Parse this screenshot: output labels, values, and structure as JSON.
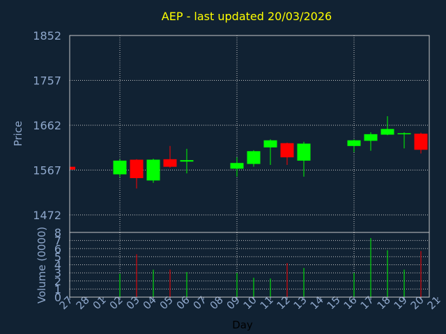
{
  "chart_data": {
    "type": "candlestick",
    "title": "AEP - last updated 20/03/2026",
    "xlabel": "Day",
    "price_panel": {
      "ylabel": "Price",
      "ylim": [
        1435,
        1852
      ],
      "yticks": [
        1472,
        1567,
        1662,
        1757,
        1852
      ],
      "grid": true
    },
    "volume_panel": {
      "ylabel": "Volume (0000)",
      "ylim": [
        0,
        8
      ],
      "yticks": [
        0,
        1,
        2,
        3,
        4,
        5,
        6,
        7,
        8
      ],
      "grid": true
    },
    "x_tick_labels": [
      "27",
      "28",
      "01",
      "02",
      "03",
      "04",
      "05",
      "06",
      "07",
      "08",
      "09",
      "10",
      "11",
      "12",
      "13",
      "14",
      "15",
      "16",
      "17",
      "18",
      "19",
      "20",
      "21"
    ],
    "candles": [
      {
        "x": "27",
        "open": 1574,
        "close": 1568,
        "high": 1575,
        "low": 1567,
        "volume": 0
      },
      {
        "x": "02",
        "open": 1558,
        "close": 1587,
        "high": 1590,
        "low": 1552,
        "volume": 2.9
      },
      {
        "x": "03",
        "open": 1589,
        "close": 1550,
        "high": 1590,
        "low": 1528,
        "volume": 5.3
      },
      {
        "x": "04",
        "open": 1545,
        "close": 1589,
        "high": 1591,
        "low": 1540,
        "volume": 3.4
      },
      {
        "x": "05",
        "open": 1590,
        "close": 1574,
        "high": 1618,
        "low": 1572,
        "volume": 3.4
      },
      {
        "x": "06",
        "open": 1585,
        "close": 1588,
        "high": 1612,
        "low": 1560,
        "volume": 3.1
      },
      {
        "x": "09",
        "open": 1570,
        "close": 1582,
        "high": 1594,
        "low": 1553,
        "volume": 3.0
      },
      {
        "x": "10",
        "open": 1580,
        "close": 1607,
        "high": 1609,
        "low": 1574,
        "volume": 2.4
      },
      {
        "x": "11",
        "open": 1615,
        "close": 1630,
        "high": 1632,
        "low": 1578,
        "volume": 2.3
      },
      {
        "x": "12",
        "open": 1624,
        "close": 1594,
        "high": 1625,
        "low": 1578,
        "volume": 4.2
      },
      {
        "x": "13",
        "open": 1587,
        "close": 1623,
        "high": 1627,
        "low": 1553,
        "volume": 3.6
      },
      {
        "x": "16",
        "open": 1618,
        "close": 1630,
        "high": 1632,
        "low": 1605,
        "volume": 3.0
      },
      {
        "x": "17",
        "open": 1629,
        "close": 1643,
        "high": 1647,
        "low": 1608,
        "volume": 7.3
      },
      {
        "x": "18",
        "open": 1642,
        "close": 1654,
        "high": 1681,
        "low": 1641,
        "volume": 5.8
      },
      {
        "x": "19",
        "open": 1643,
        "close": 1645,
        "high": 1647,
        "low": 1613,
        "volume": 3.4
      },
      {
        "x": "20",
        "open": 1644,
        "close": 1610,
        "high": 1646,
        "low": 1602,
        "volume": 5.7
      }
    ],
    "colors": {
      "background": "#112233",
      "up": "#00ff00",
      "down": "#ff0000",
      "grid": "#c8c8c8",
      "axis": "#8fa8cc",
      "title": "#ffff00"
    }
  }
}
